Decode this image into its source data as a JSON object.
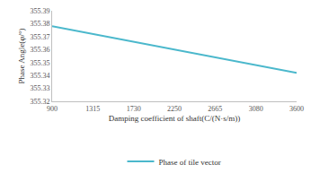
{
  "chart_data": {
    "type": "line",
    "x_label": "Damping coefficient of shaft(C/(N·s/m))",
    "y_label": "Phase Angle(φ/°)",
    "categories": [
      "900",
      "1315",
      "1730",
      "2250",
      "2665",
      "3080",
      "3600"
    ],
    "series": [
      {
        "name": "Phase of tile vector",
        "color": "#4bb8cc",
        "values": [
          355.378,
          355.372,
          355.366,
          355.36,
          355.354,
          355.348,
          355.342
        ]
      }
    ],
    "ylim": [
      355.32,
      355.39
    ],
    "yticks": [
      355.32,
      355.33,
      355.34,
      355.35,
      355.36,
      355.37,
      355.38,
      355.39
    ],
    "grid": false,
    "legend": "bottom"
  }
}
